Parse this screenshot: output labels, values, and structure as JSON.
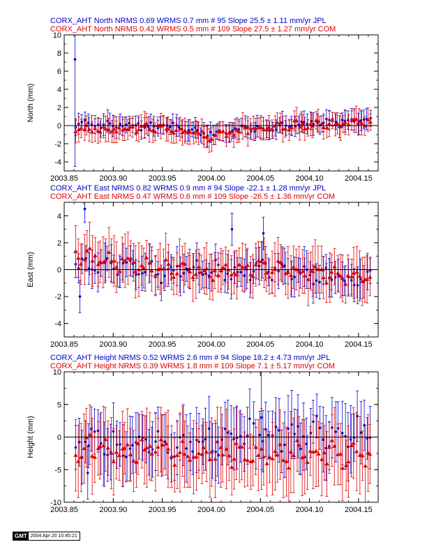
{
  "colors": {
    "jpl": "#0000cc",
    "com": "#dd0000",
    "axis": "#000000"
  },
  "footer": {
    "logo": "GMT",
    "timestamp": "2004 Apr 20 10:45:21"
  },
  "chart_data": [
    {
      "type": "scatter",
      "ylabel": "North (mm)",
      "xlim": [
        2003.85,
        2004.17
      ],
      "ylim": [
        -5,
        10
      ],
      "yticks": [
        -4,
        -2,
        0,
        2,
        4,
        6,
        8,
        10
      ],
      "xticks": [
        2003.85,
        2003.9,
        2003.95,
        2004.0,
        2004.05,
        2004.1,
        2004.15
      ],
      "xticklabels": [
        "2003.85",
        "2003.90",
        "2003.95",
        "2004.00",
        "2004.05",
        "2004.10",
        "2004.15"
      ],
      "title_lines": [
        "CORX_AHT North NRMS 0.69 WRMS  0.7 mm # 95 Slope   25.5 ±  1.11 mm/yr JPL",
        "CORX_AHT North NRMS 0.42 WRMS  0.5 mm # 109 Slope   27.5 ±  1.27 mm/yr COM"
      ],
      "series": [
        {
          "name": "JPL",
          "marker": "circle",
          "count": 95,
          "start": 2003.862,
          "end": 2004.162,
          "amp": 0.4,
          "noise": 0.35,
          "err": 1.0,
          "seed": 11,
          "trend": [
            [
              2003.862,
              0.2
            ],
            [
              2003.95,
              0.0
            ],
            [
              2004.0,
              -0.9
            ],
            [
              2004.05,
              -0.2
            ],
            [
              2004.1,
              0.2
            ],
            [
              2004.162,
              0.6
            ]
          ],
          "outliers": [
            [
              2003.861,
              7.3,
              11.8
            ]
          ]
        },
        {
          "name": "COM",
          "marker": "triangle",
          "count": 109,
          "start": 2003.862,
          "end": 2004.162,
          "amp": 0.35,
          "noise": 0.35,
          "err": 1.2,
          "seed": 23,
          "trend": [
            [
              2003.862,
              -0.4
            ],
            [
              2003.95,
              -0.2
            ],
            [
              2004.0,
              -1.2
            ],
            [
              2004.05,
              -0.1
            ],
            [
              2004.1,
              0.1
            ],
            [
              2004.162,
              0.4
            ]
          ],
          "outliers": []
        }
      ]
    },
    {
      "type": "scatter",
      "ylabel": "East (mm)",
      "xlim": [
        2003.85,
        2004.17
      ],
      "ylim": [
        -5,
        5
      ],
      "yticks": [
        -4,
        -2,
        0,
        2,
        4
      ],
      "xticks": [
        2003.85,
        2003.9,
        2003.95,
        2004.0,
        2004.05,
        2004.1,
        2004.15
      ],
      "xticklabels": [
        "2003.85",
        "2003.90",
        "2003.95",
        "2004.00",
        "2004.05",
        "2004.10",
        "2004.15"
      ],
      "title_lines": [
        "CORX_AHT East NRMS 0.82 WRMS  0.9 mm # 94 Slope  -22.1 ±  1.28 mm/yr JPL",
        "CORX_AHT East NRMS 0.47 WRMS  0.6 mm # 109 Slope  -26.5 ±  1.36 mm/yr COM"
      ],
      "series": [
        {
          "name": "JPL",
          "marker": "circle",
          "count": 94,
          "start": 2003.862,
          "end": 2004.162,
          "amp": 0.6,
          "noise": 0.5,
          "err": 1.2,
          "seed": 37,
          "trend": [
            [
              2003.862,
              0.5
            ],
            [
              2003.95,
              -0.2
            ],
            [
              2004.05,
              0.0
            ],
            [
              2004.162,
              -0.8
            ]
          ],
          "outliers": [
            [
              2003.871,
              4.5,
              1.0
            ],
            [
              2003.866,
              -2.0,
              1.2
            ],
            [
              2004.021,
              3.0,
              1.2
            ],
            [
              2004.053,
              2.7,
              1.2
            ]
          ]
        },
        {
          "name": "COM",
          "marker": "triangle",
          "count": 109,
          "start": 2003.862,
          "end": 2004.162,
          "amp": 0.55,
          "noise": 0.4,
          "err": 1.6,
          "seed": 41,
          "trend": [
            [
              2003.862,
              1.0
            ],
            [
              2003.95,
              0.1
            ],
            [
              2004.0,
              -0.2
            ],
            [
              2004.05,
              0.2
            ],
            [
              2004.162,
              -0.7
            ]
          ],
          "outliers": []
        }
      ]
    },
    {
      "type": "scatter",
      "ylabel": "Height (mm)",
      "xlim": [
        2003.85,
        2004.17
      ],
      "ylim": [
        -10,
        10
      ],
      "yticks": [
        -10,
        -5,
        0,
        5,
        10
      ],
      "xticks": [
        2003.85,
        2003.9,
        2003.95,
        2004.0,
        2004.05,
        2004.1,
        2004.15
      ],
      "xticklabels": [
        "2003.85",
        "2003.90",
        "2003.95",
        "2004.00",
        "2004.05",
        "2004.10",
        "2004.15"
      ],
      "title_lines": [
        "CORX_AHT Height NRMS 0.52 WRMS  2.6 mm # 94 Slope   18.2 ±  4.73 mm/yr JPL",
        "CORX_AHT Height NRMS 0.39 WRMS  1.8 mm # 109 Slope    7.1 ±  5.17 mm/yr COM"
      ],
      "series": [
        {
          "name": "JPL",
          "marker": "circle",
          "count": 94,
          "start": 2003.862,
          "end": 2004.162,
          "amp": 2.2,
          "noise": 1.6,
          "err": 4.2,
          "seed": 53,
          "trend": [
            [
              2003.862,
              -0.8
            ],
            [
              2003.95,
              -1.2
            ],
            [
              2004.05,
              0.3
            ],
            [
              2004.162,
              1.0
            ]
          ],
          "outliers": [
            [
              2004.051,
              3.0,
              8.0
            ],
            [
              2003.874,
              -5.5,
              4.0
            ]
          ]
        },
        {
          "name": "COM",
          "marker": "triangle",
          "count": 109,
          "start": 2003.862,
          "end": 2004.162,
          "amp": 1.8,
          "noise": 1.3,
          "err": 5.0,
          "seed": 67,
          "trend": [
            [
              2003.862,
              -1.5
            ],
            [
              2003.95,
              -2.2
            ],
            [
              2004.05,
              -3.0
            ],
            [
              2004.162,
              -2.3
            ]
          ],
          "outliers": []
        }
      ]
    }
  ]
}
